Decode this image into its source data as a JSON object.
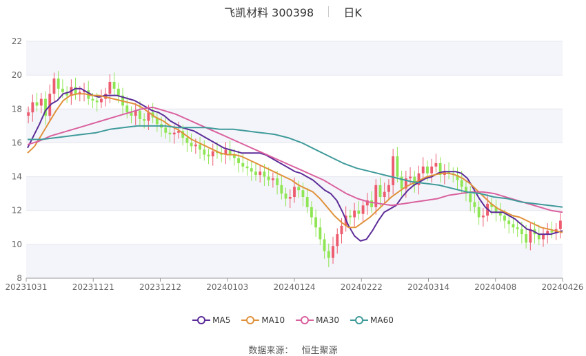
{
  "title": {
    "name": "飞凯材料 300398",
    "period": "日K"
  },
  "legend": [
    {
      "name": "MA5",
      "color": "#5b2c98"
    },
    {
      "name": "MA10",
      "color": "#e0913b"
    },
    {
      "name": "MA30",
      "color": "#d9609e"
    },
    {
      "name": "MA60",
      "color": "#3f9a9a"
    }
  ],
  "source": {
    "label": "数据来源：",
    "value": "恒生聚源"
  },
  "colors": {
    "up": "#ec5b6e",
    "down": "#8fe655",
    "grid_band": "#f4f5fa",
    "axis": "#999999"
  },
  "chart_data": {
    "type": "candlestick",
    "ylim": [
      8,
      22
    ],
    "yticks": [
      8,
      10,
      12,
      14,
      16,
      18,
      20,
      22
    ],
    "xticks": [
      "20231031",
      "20231121",
      "20231212",
      "20240103",
      "20240124",
      "20240222",
      "20240314",
      "20240408",
      "20240426"
    ],
    "closes": [
      17.8,
      18.4,
      18.2,
      18.6,
      17.6,
      18.9,
      19.8,
      19.2,
      19.0,
      18.8,
      19.3,
      18.9,
      19.0,
      19.1,
      18.6,
      18.5,
      18.4,
      18.6,
      18.9,
      19.6,
      19.2,
      18.8,
      18.2,
      17.8,
      17.6,
      17.9,
      17.4,
      17.3,
      17.8,
      17.5,
      17.1,
      16.9,
      16.6,
      16.5,
      16.6,
      16.7,
      16.3,
      16.0,
      15.8,
      15.9,
      15.6,
      15.3,
      15.2,
      15.5,
      15.4,
      15.3,
      15.6,
      15.3,
      15.1,
      14.8,
      14.6,
      14.5,
      14.3,
      14.1,
      14.3,
      14.0,
      13.8,
      13.9,
      13.5,
      13.0,
      12.7,
      12.8,
      13.4,
      13.2,
      12.8,
      12.2,
      11.6,
      11.0,
      10.3,
      9.6,
      9.2,
      9.9,
      10.6,
      11.1,
      11.7,
      11.6,
      12.0,
      11.8,
      12.3,
      12.6,
      12.2,
      13.5,
      12.8,
      13.1,
      13.5,
      15.2,
      14.0,
      13.3,
      13.9,
      14.0,
      13.5,
      14.2,
      14.6,
      14.2,
      14.6,
      14.8,
      14.1,
      14.3,
      14.2,
      14.1,
      13.8,
      13.4,
      13.0,
      12.5,
      12.2,
      11.6,
      11.7,
      12.4,
      12.2,
      11.9,
      11.7,
      11.4,
      11.2,
      11.0,
      10.9,
      10.6,
      10.1,
      10.9,
      10.6,
      10.3,
      10.6,
      10.8,
      10.7,
      10.9,
      11.4
    ],
    "series": [
      {
        "name": "MA5",
        "values": [
          15.7,
          16.4,
          17.1,
          17.9,
          18.3,
          18.5,
          18.9,
          19.0,
          19.2,
          19.2,
          19.0,
          18.8,
          18.7,
          18.8,
          18.8,
          18.8,
          18.7,
          18.6,
          18.5,
          18.3,
          18.1,
          17.9,
          17.8,
          17.6,
          17.3,
          17.1,
          16.9,
          16.8,
          16.7,
          16.5,
          16.3,
          16.1,
          15.9,
          15.7,
          15.6,
          15.5,
          15.4,
          15.4,
          15.4,
          15.4,
          15.3,
          15.1,
          14.9,
          14.7,
          14.5,
          14.3,
          14.2,
          14.0,
          13.8,
          13.5,
          13.2,
          13.0,
          12.6,
          11.9,
          11.1,
          10.5,
          10.2,
          10.3,
          10.8,
          11.4,
          11.9,
          12.1,
          12.3,
          12.8,
          13.2,
          13.5,
          13.7,
          13.9,
          14.0,
          14.2,
          14.3,
          14.3,
          14.3,
          14.2,
          13.9,
          13.3,
          12.7,
          12.2,
          11.9,
          11.9,
          11.9,
          11.7,
          11.5,
          11.2,
          10.9,
          10.8,
          10.6,
          10.6,
          10.6,
          10.7,
          10.8
        ]
      },
      {
        "name": "MA10",
        "values": [
          15.4,
          15.8,
          16.5,
          17.2,
          17.9,
          18.5,
          18.8,
          18.9,
          18.9,
          18.8,
          18.8,
          18.7,
          18.6,
          18.5,
          18.4,
          18.3,
          18.1,
          17.8,
          17.5,
          17.3,
          17.0,
          16.8,
          16.5,
          16.2,
          16.0,
          15.8,
          15.6,
          15.4,
          15.3,
          15.3,
          15.2,
          15.0,
          14.8,
          14.6,
          14.4,
          14.2,
          14.0,
          13.8,
          13.5,
          13.3,
          13.1,
          12.7,
          12.2,
          11.7,
          11.3,
          11.0,
          11.0,
          11.3,
          11.6,
          12.0,
          12.4,
          12.8,
          13.1,
          13.4,
          13.6,
          13.8,
          14.0,
          14.1,
          14.2,
          14.2,
          14.1,
          13.9,
          13.6,
          13.2,
          12.8,
          12.4,
          12.1,
          11.9,
          11.7,
          11.6,
          11.4,
          11.2,
          11.0,
          10.9,
          10.8,
          10.7
        ]
      },
      {
        "name": "MA30",
        "values": [
          15.9,
          16.1,
          16.4,
          16.6,
          16.8,
          17.0,
          17.2,
          17.4,
          17.6,
          17.8,
          18.0,
          18.1,
          17.9,
          17.7,
          17.4,
          17.1,
          16.8,
          16.5,
          16.2,
          15.9,
          15.6,
          15.3,
          15.0,
          14.7,
          14.4,
          14.1,
          13.8,
          13.4,
          13.0,
          12.7,
          12.5,
          12.4,
          12.3,
          12.4,
          12.5,
          12.6,
          12.7,
          12.9,
          13.0,
          13.1,
          13.1,
          13.0,
          12.8,
          12.6,
          12.4,
          12.2,
          12.0,
          11.9
        ]
      },
      {
        "name": "MA60",
        "values": [
          16.2,
          16.2,
          16.3,
          16.4,
          16.5,
          16.6,
          16.8,
          16.9,
          17.0,
          17.0,
          17.0,
          16.9,
          16.9,
          16.9,
          16.8,
          16.8,
          16.7,
          16.6,
          16.5,
          16.3,
          16.0,
          15.6,
          15.2,
          14.8,
          14.5,
          14.3,
          14.1,
          13.9,
          13.7,
          13.6,
          13.5,
          13.3,
          13.1,
          13.0,
          12.8,
          12.7,
          12.5,
          12.4,
          12.3,
          12.2
        ]
      }
    ]
  }
}
